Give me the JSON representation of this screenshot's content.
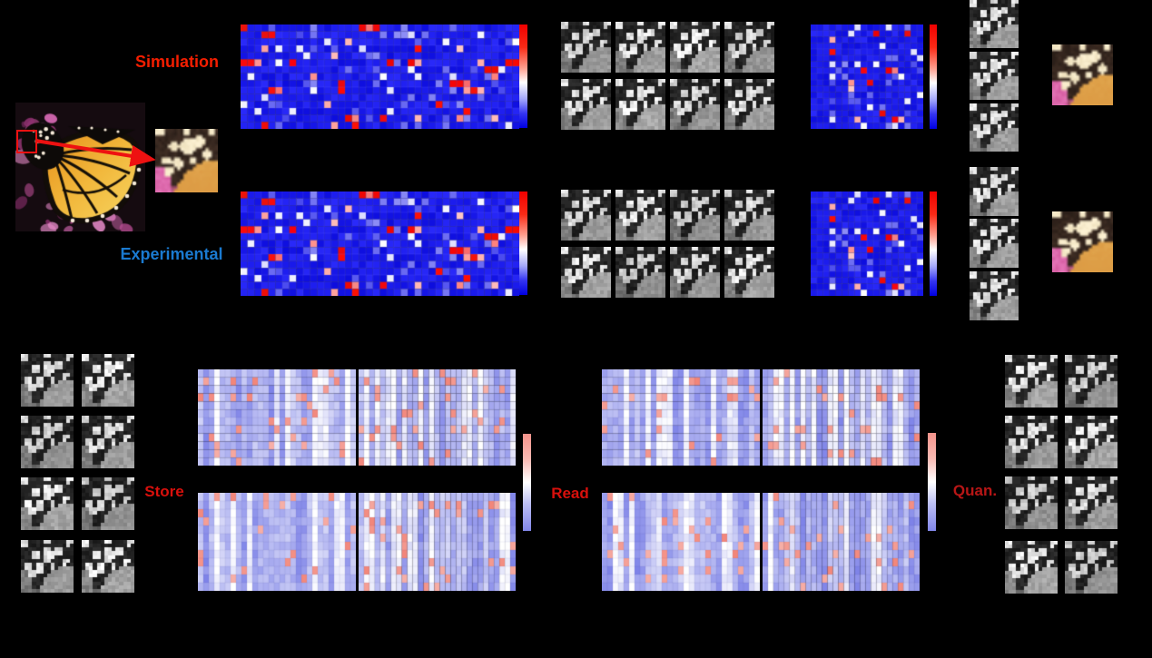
{
  "figure": {
    "background": "#000000",
    "labels": {
      "simulation": "Simulation",
      "experimental": "Experimental",
      "store": "Store",
      "read": "Read",
      "quan": "Quan."
    },
    "label_colors": {
      "simulation": "#f41e00",
      "experimental": "#1a7ad0",
      "store": "#d8100c",
      "read": "#d8100c",
      "quan": "#b81616"
    },
    "images": {
      "source_photo": "monarch-butterfly-on-pink-flowers",
      "roi_patch": "zoomed-wing-patch-with-cream-spots",
      "encoded_patches": "grayscale-subpatch-grids",
      "reconstructed_patches": "color-reconstructed-wing-patches"
    }
  },
  "chart_data": [
    {
      "id": "sim_weights",
      "type": "heatmap",
      "rows": 15,
      "cols": 40,
      "pattern": "sparse",
      "colormap": [
        "#0000e2",
        "#ffffff",
        "#f00000"
      ],
      "dominant": "blue-low",
      "high_cell_fraction": 0.12,
      "legend_position": "right-colorbar",
      "note": "simulation weight matrix"
    },
    {
      "id": "exp_weights",
      "type": "heatmap",
      "rows": 15,
      "cols": 40,
      "pattern": "sparse",
      "colormap": [
        "#0000e2",
        "#ffffff",
        "#f00000"
      ],
      "dominant": "blue-low",
      "high_cell_fraction": 0.12,
      "legend_position": "right-colorbar",
      "note": "experimental weight matrix, nearly identical to simulation"
    },
    {
      "id": "sim_small",
      "type": "heatmap",
      "rows": 17,
      "cols": 18,
      "pattern": "sparse",
      "colormap": [
        "#0000e2",
        "#ffffff",
        "#f00000"
      ],
      "dominant": "blue-low",
      "high_cell_fraction": 0.12,
      "legend_position": "right-colorbar",
      "note": "simulation decoder matrix"
    },
    {
      "id": "exp_small",
      "type": "heatmap",
      "rows": 17,
      "cols": 18,
      "pattern": "sparse",
      "colormap": [
        "#0000e2",
        "#ffffff",
        "#f00000"
      ],
      "dominant": "blue-low",
      "high_cell_fraction": 0.12,
      "legend_position": "right-colorbar",
      "note": "experimental decoder matrix"
    },
    {
      "id": "store_block",
      "type": "heatmap",
      "panels": 4,
      "layout": "2x2",
      "rows": 12,
      "cols": 29,
      "pattern": "vertical-stripes",
      "colormap": [
        "#7e83e8",
        "#ffffff",
        "#f2958b"
      ],
      "pink_cell_fraction": 0.08,
      "legend_position": "right-colorbar",
      "note": "stored analog states"
    },
    {
      "id": "read_block",
      "type": "heatmap",
      "panels": 4,
      "layout": "2x2",
      "rows": 12,
      "cols": 29,
      "pattern": "vertical-stripes",
      "colormap": [
        "#7e83e8",
        "#ffffff",
        "#f2958b"
      ],
      "pink_cell_fraction": 0.08,
      "legend_position": "right-colorbar",
      "note": "read-out analog states"
    }
  ]
}
